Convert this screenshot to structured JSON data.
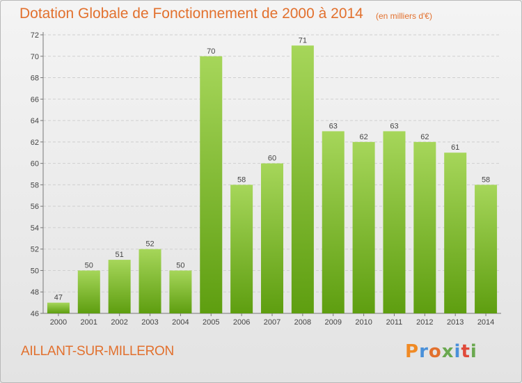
{
  "header": {
    "title": "Dotation Globale de Fonctionnement de 2000 à 2014",
    "units": "(en milliers d'€)"
  },
  "footer": {
    "place": "AILLANT-SUR-MILLERON",
    "logo": "Proxiti",
    "logo_colors": [
      "#f08a24",
      "#4a90d9",
      "#e2702d",
      "#6aa84f",
      "#4a90d9",
      "#e04a3a",
      "#6aa84f"
    ]
  },
  "colors": {
    "bar_top": "#a6d65a",
    "bar_bottom": "#5e9e10",
    "grid": "#cfcfcf",
    "title": "#e2702d"
  },
  "chart_data": {
    "type": "bar",
    "title": "Dotation Globale de Fonctionnement de 2000 à 2014",
    "subtitle": "(en milliers d'€)",
    "categories": [
      "2000",
      "2001",
      "2002",
      "2003",
      "2004",
      "2005",
      "2006",
      "2007",
      "2008",
      "2009",
      "2010",
      "2011",
      "2012",
      "2013",
      "2014"
    ],
    "values": [
      47,
      50,
      51,
      52,
      50,
      70,
      58,
      60,
      71,
      63,
      62,
      63,
      62,
      61,
      58
    ],
    "ylim": [
      46,
      72
    ],
    "yticks": [
      46,
      48,
      50,
      52,
      54,
      56,
      58,
      60,
      62,
      64,
      66,
      68,
      70,
      72
    ],
    "grid": true,
    "xlabel": "",
    "ylabel": ""
  }
}
